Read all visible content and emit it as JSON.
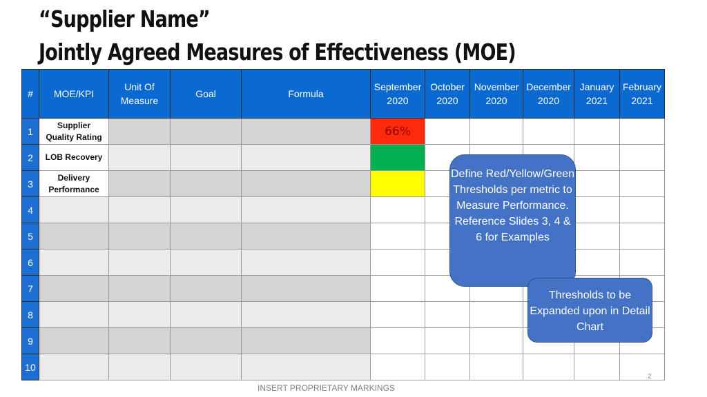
{
  "title": {
    "line1": "“Supplier Name”",
    "line2": "Jointly Agreed Measures of Effectiveness (MOE)"
  },
  "table": {
    "headers": {
      "num": "#",
      "moe_kpi": "MOE/KPI",
      "unit_of_measure": [
        "Unit Of",
        "Measure"
      ],
      "goal": "Goal",
      "formula": "Formula",
      "months": [
        [
          "September",
          "2020"
        ],
        [
          "October",
          "2020"
        ],
        [
          "November",
          "2020"
        ],
        [
          "December",
          "2020"
        ],
        [
          "January",
          "2021"
        ],
        [
          "February",
          "2021"
        ]
      ]
    },
    "rows": [
      {
        "num": "1",
        "name": [
          "Supplier",
          "Quality Rating"
        ],
        "september_value": "66%",
        "september_status": "red"
      },
      {
        "num": "2",
        "name": [
          "LOB Recovery"
        ],
        "september_status": "green"
      },
      {
        "num": "3",
        "name": [
          "Delivery",
          "Performance"
        ],
        "september_status": "yellow"
      },
      {
        "num": "4",
        "name": []
      },
      {
        "num": "5",
        "name": []
      },
      {
        "num": "6",
        "name": []
      },
      {
        "num": "7",
        "name": []
      },
      {
        "num": "8",
        "name": []
      },
      {
        "num": "9",
        "name": []
      },
      {
        "num": "10",
        "name": []
      }
    ]
  },
  "callouts": {
    "define_thresholds": "Define Red/Yellow/Green Thresholds per metric to Measure Performance. Reference Slides 3, 4 & 6 for Examples",
    "thresholds_expanded": "Thresholds to be Expanded upon in Detail Chart"
  },
  "footer": "INSERT PROPRIETARY MARKINGS",
  "page_number": "2",
  "colors": {
    "header_blue": "#0a6ad0",
    "status_red": "#ff2a0c",
    "status_green": "#00b050",
    "status_yellow": "#ffff00",
    "callout_blue": "#4472c4"
  }
}
